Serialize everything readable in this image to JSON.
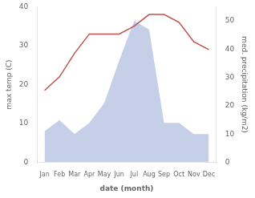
{
  "chart_data": {
    "type": "line",
    "xlabel": "date (month)",
    "ylabel": "max temp (C)",
    "y2label": "med. precipitation (kg/m2)",
    "categories": [
      "Jan",
      "Feb",
      "Mar",
      "Apr",
      "May",
      "Jun",
      "Jul",
      "Aug",
      "Sep",
      "Oct",
      "Nov",
      "Dec"
    ],
    "series": [
      {
        "type": "line",
        "color": "#c0504d",
        "values": [
          18.5,
          22,
          28,
          33,
          33,
          33,
          35,
          38,
          38,
          36,
          31,
          29
        ]
      },
      {
        "type": "area",
        "color": "#c5cfe8",
        "axis": "y2",
        "values": [
          11,
          15,
          10,
          14,
          21,
          36,
          50,
          47,
          14,
          14,
          10,
          10
        ]
      }
    ],
    "ylim": [
      0,
      40
    ],
    "yticks": [
      0,
      10,
      20,
      30,
      40
    ],
    "y2lim": [
      0,
      55
    ],
    "y2ticks": [
      0,
      10,
      20,
      30,
      40,
      50
    ],
    "grid": false
  }
}
